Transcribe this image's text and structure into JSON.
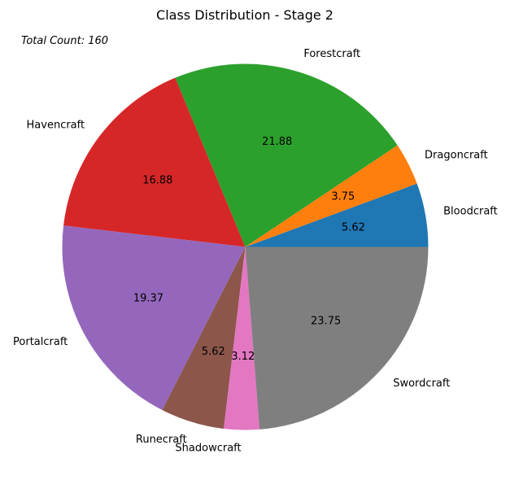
{
  "chart_data": {
    "type": "pie",
    "title": "Class Distribution - Stage 2",
    "annotation": "Total Count: 160",
    "categories": [
      "Bloodcraft",
      "Dragoncraft",
      "Forestcraft",
      "Havencraft",
      "Portalcraft",
      "Runecraft",
      "Shadowcraft",
      "Swordcraft"
    ],
    "values": [
      5.62,
      3.75,
      21.88,
      16.88,
      19.37,
      5.62,
      3.12,
      23.75
    ],
    "value_labels": [
      "5.62",
      "3.75",
      "21.88",
      "16.88",
      "19.37",
      "5.62",
      "3.12",
      "23.75"
    ],
    "colors": [
      "#1f77b4",
      "#ff7f0e",
      "#2ca02c",
      "#d62728",
      "#9467bd",
      "#8c564b",
      "#e377c2",
      "#7f7f7f"
    ],
    "start_angle": 0,
    "direction": "counterclockwise"
  }
}
